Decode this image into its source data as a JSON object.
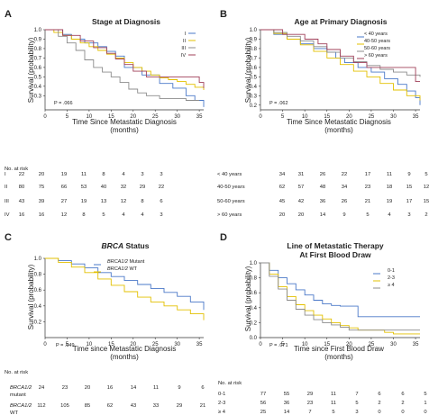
{
  "chart_data": [
    {
      "type": "line",
      "panel": "A",
      "title": "Stage at Diagnosis",
      "xlabel": "Time Since Metastatic Diagnosis",
      "xlabel2": "(months)",
      "ylabel": "Survival (probability)",
      "xticks": [
        0,
        5,
        10,
        15,
        20,
        25,
        30,
        35
      ],
      "yticks": [
        0.3,
        0.4,
        0.5,
        0.6,
        0.7,
        0.8,
        0.9,
        1.0
      ],
      "xlim": [
        0,
        36
      ],
      "ylim": [
        0.15,
        1.0
      ],
      "pvalue": "P = .066",
      "series": [
        {
          "name": "I",
          "color": "#4a78c8",
          "x": [
            0,
            4,
            6,
            9,
            12,
            14,
            16,
            18,
            22,
            26,
            29,
            32,
            34,
            36
          ],
          "y": [
            1.0,
            0.95,
            0.9,
            0.86,
            0.82,
            0.77,
            0.72,
            0.6,
            0.52,
            0.43,
            0.38,
            0.3,
            0.25,
            0.18
          ]
        },
        {
          "name": "II",
          "color": "#e3c000",
          "x": [
            0,
            2,
            4,
            6,
            8,
            10,
            12,
            14,
            16,
            18,
            20,
            22,
            24,
            26,
            28,
            30,
            32,
            34,
            36
          ],
          "y": [
            1.0,
            0.97,
            0.94,
            0.9,
            0.86,
            0.82,
            0.78,
            0.74,
            0.7,
            0.65,
            0.6,
            0.56,
            0.52,
            0.49,
            0.47,
            0.45,
            0.42,
            0.39,
            0.36
          ]
        },
        {
          "name": "III",
          "color": "#8c8c8c",
          "x": [
            0,
            3,
            5,
            7,
            9,
            11,
            13,
            15,
            17,
            19,
            21,
            23,
            26,
            29,
            32,
            35
          ],
          "y": [
            1.0,
            0.93,
            0.86,
            0.78,
            0.68,
            0.6,
            0.55,
            0.5,
            0.44,
            0.37,
            0.33,
            0.3,
            0.27,
            0.27,
            0.25,
            0.25
          ]
        },
        {
          "name": "IV",
          "color": "#a0405a",
          "x": [
            0,
            4,
            8,
            11,
            14,
            16,
            18,
            20,
            23,
            25,
            30,
            33,
            35,
            36
          ],
          "y": [
            1.0,
            0.94,
            0.88,
            0.81,
            0.75,
            0.69,
            0.63,
            0.56,
            0.5,
            0.5,
            0.5,
            0.5,
            0.44,
            0.38
          ]
        }
      ],
      "risk_header": "No. at risk",
      "risk_rows": [
        {
          "label": "I",
          "values": [
            "22",
            "20",
            "19",
            "11",
            "8",
            "4",
            "3",
            "3"
          ]
        },
        {
          "label": "II",
          "values": [
            "80",
            "75",
            "66",
            "53",
            "40",
            "32",
            "29",
            "22"
          ]
        },
        {
          "label": "III",
          "values": [
            "43",
            "39",
            "27",
            "19",
            "13",
            "12",
            "8",
            "6"
          ]
        },
        {
          "label": "IV",
          "values": [
            "16",
            "16",
            "12",
            "8",
            "5",
            "4",
            "4",
            "3"
          ]
        }
      ]
    },
    {
      "type": "line",
      "panel": "B",
      "title": "Age at Primary Diagnosis",
      "xlabel": "Time Since Metastatic Diagnosis",
      "xlabel2": "(months)",
      "ylabel": "Survival (probability)",
      "xticks": [
        0,
        5,
        10,
        15,
        20,
        25,
        30,
        35
      ],
      "yticks": [
        0.2,
        0.3,
        0.4,
        0.5,
        0.6,
        0.7,
        0.8,
        0.9,
        1.0
      ],
      "xlim": [
        0,
        36
      ],
      "ylim": [
        0.15,
        1.0
      ],
      "pvalue": "P = .062",
      "series": [
        {
          "name": "< 40 years",
          "color": "#4a78c8",
          "x": [
            0,
            3,
            6,
            9,
            12,
            15,
            17,
            19,
            22,
            25,
            28,
            31,
            33,
            35,
            36
          ],
          "y": [
            1.0,
            0.95,
            0.9,
            0.85,
            0.8,
            0.76,
            0.7,
            0.65,
            0.6,
            0.55,
            0.48,
            0.42,
            0.35,
            0.28,
            0.2
          ]
        },
        {
          "name": "40-50 years",
          "color": "#e3c000",
          "x": [
            0,
            3,
            6,
            9,
            12,
            15,
            18,
            21,
            24,
            27,
            30,
            33,
            36
          ],
          "y": [
            1.0,
            0.96,
            0.9,
            0.84,
            0.77,
            0.7,
            0.63,
            0.56,
            0.5,
            0.43,
            0.36,
            0.3,
            0.25
          ]
        },
        {
          "name": "50-60 years",
          "color": "#8c8c8c",
          "x": [
            0,
            3,
            6,
            9,
            12,
            15,
            18,
            21,
            24,
            27,
            30,
            33,
            36
          ],
          "y": [
            1.0,
            0.97,
            0.93,
            0.88,
            0.82,
            0.76,
            0.7,
            0.66,
            0.62,
            0.58,
            0.55,
            0.52,
            0.5
          ]
        },
        {
          "name": "> 60 years",
          "color": "#a0405a",
          "x": [
            0,
            5,
            10,
            13,
            15,
            18,
            21,
            24,
            27,
            30,
            34,
            35,
            36
          ],
          "y": [
            1.0,
            0.95,
            0.9,
            0.85,
            0.79,
            0.72,
            0.65,
            0.6,
            0.6,
            0.6,
            0.6,
            0.45,
            0.45
          ]
        }
      ],
      "risk_header": "",
      "risk_rows": [
        {
          "label": "< 40 years",
          "values": [
            "34",
            "31",
            "26",
            "22",
            "17",
            "11",
            "9",
            "5"
          ]
        },
        {
          "label": "40-50 years",
          "values": [
            "62",
            "57",
            "48",
            "34",
            "23",
            "18",
            "15",
            "12"
          ]
        },
        {
          "label": "50-60 years",
          "values": [
            "45",
            "42",
            "36",
            "26",
            "21",
            "19",
            "17",
            "15"
          ]
        },
        {
          "label": "> 60 years",
          "values": [
            "20",
            "20",
            "14",
            "9",
            "5",
            "4",
            "3",
            "2"
          ]
        }
      ]
    },
    {
      "type": "line",
      "panel": "C",
      "title_italic": "BRCA",
      "title_rest": " Status",
      "xlabel": "Time since Metastatic Diagnosis",
      "xlabel2": "(months)",
      "ylabel": "Survival (probability)",
      "xticks": [
        0,
        5,
        10,
        15,
        20,
        25,
        30,
        35
      ],
      "yticks": [
        0.2,
        0.4,
        0.6,
        0.8,
        1.0
      ],
      "xlim": [
        0,
        36
      ],
      "ylim": [
        0.0,
        1.0
      ],
      "pvalue": "P = .049",
      "series": [
        {
          "name": "BRCA1/2 Mutant",
          "name_italic": "BRCA1/2",
          "name_rest": " Mutant",
          "color": "#4a78c8",
          "x": [
            0,
            3,
            6,
            9,
            12,
            15,
            18,
            21,
            24,
            27,
            30,
            33,
            36
          ],
          "y": [
            1.0,
            0.97,
            0.93,
            0.88,
            0.82,
            0.77,
            0.72,
            0.67,
            0.62,
            0.57,
            0.52,
            0.45,
            0.35
          ]
        },
        {
          "name": "BRCA1/2 WT",
          "name_italic": "BRCA1/2",
          "name_rest": " WT",
          "color": "#e3c000",
          "x": [
            0,
            3,
            6,
            9,
            12,
            15,
            18,
            21,
            24,
            27,
            30,
            33,
            36
          ],
          "y": [
            1.0,
            0.95,
            0.89,
            0.82,
            0.74,
            0.66,
            0.58,
            0.51,
            0.45,
            0.4,
            0.35,
            0.3,
            0.22
          ]
        }
      ],
      "risk_header": "No. at risk",
      "risk_rows": [
        {
          "label_italic": "BRCA1/2",
          "label_sub": "mutant",
          "values": [
            "24",
            "23",
            "20",
            "16",
            "14",
            "11",
            "9",
            "6"
          ]
        },
        {
          "label_italic": "BRCA1/2",
          "label_sub": "WT",
          "values": [
            "112",
            "105",
            "85",
            "62",
            "43",
            "33",
            "29",
            "21"
          ]
        }
      ]
    },
    {
      "type": "line",
      "panel": "D",
      "title": "Line of Metastatic Therapy",
      "title2": "At First Blood Draw",
      "xlabel": "Time since First Blood Draw",
      "xlabel2": "(months)",
      "ylabel": "Survival (probability)",
      "xticks": [
        0,
        5,
        10,
        15,
        20,
        25,
        30,
        35
      ],
      "yticks": [
        0.0,
        0.2,
        0.4,
        0.6,
        0.8,
        1.0
      ],
      "xlim": [
        0,
        36
      ],
      "ylim": [
        0.0,
        1.0
      ],
      "pvalue": "P = .071",
      "series": [
        {
          "name": "0-1",
          "color": "#4a78c8",
          "x": [
            0,
            2,
            4,
            6,
            8,
            10,
            12,
            14,
            16,
            18,
            20,
            22,
            24,
            28,
            32,
            36
          ],
          "y": [
            1.0,
            0.9,
            0.8,
            0.72,
            0.64,
            0.57,
            0.5,
            0.45,
            0.43,
            0.42,
            0.42,
            0.28,
            0.28,
            0.28,
            0.28,
            0.28
          ]
        },
        {
          "name": "2-3",
          "color": "#e3c000",
          "x": [
            0,
            2,
            4,
            6,
            8,
            10,
            12,
            14,
            16,
            18,
            20,
            22,
            24,
            26,
            28,
            30,
            36
          ],
          "y": [
            1.0,
            0.85,
            0.68,
            0.55,
            0.44,
            0.36,
            0.3,
            0.25,
            0.2,
            0.16,
            0.13,
            0.1,
            0.1,
            0.1,
            0.07,
            0.05,
            0.05
          ]
        },
        {
          "name": "≥ 4",
          "color": "#8c8c8c",
          "x": [
            0,
            2,
            4,
            6,
            8,
            10,
            12,
            14,
            16,
            18,
            20,
            22,
            36
          ],
          "y": [
            1.0,
            0.82,
            0.65,
            0.5,
            0.38,
            0.3,
            0.24,
            0.2,
            0.17,
            0.14,
            0.1,
            0.1,
            0.1
          ]
        }
      ],
      "risk_header": "No. at risk",
      "risk_rows": [
        {
          "label": "0-1",
          "values": [
            "77",
            "55",
            "29",
            "11",
            "7",
            "6",
            "6",
            "5"
          ]
        },
        {
          "label": "2-3",
          "values": [
            "56",
            "36",
            "23",
            "11",
            "5",
            "2",
            "2",
            "1"
          ]
        },
        {
          "label": "≥ 4",
          "values": [
            "25",
            "14",
            "7",
            "5",
            "3",
            "0",
            "0",
            "0"
          ]
        }
      ]
    }
  ]
}
